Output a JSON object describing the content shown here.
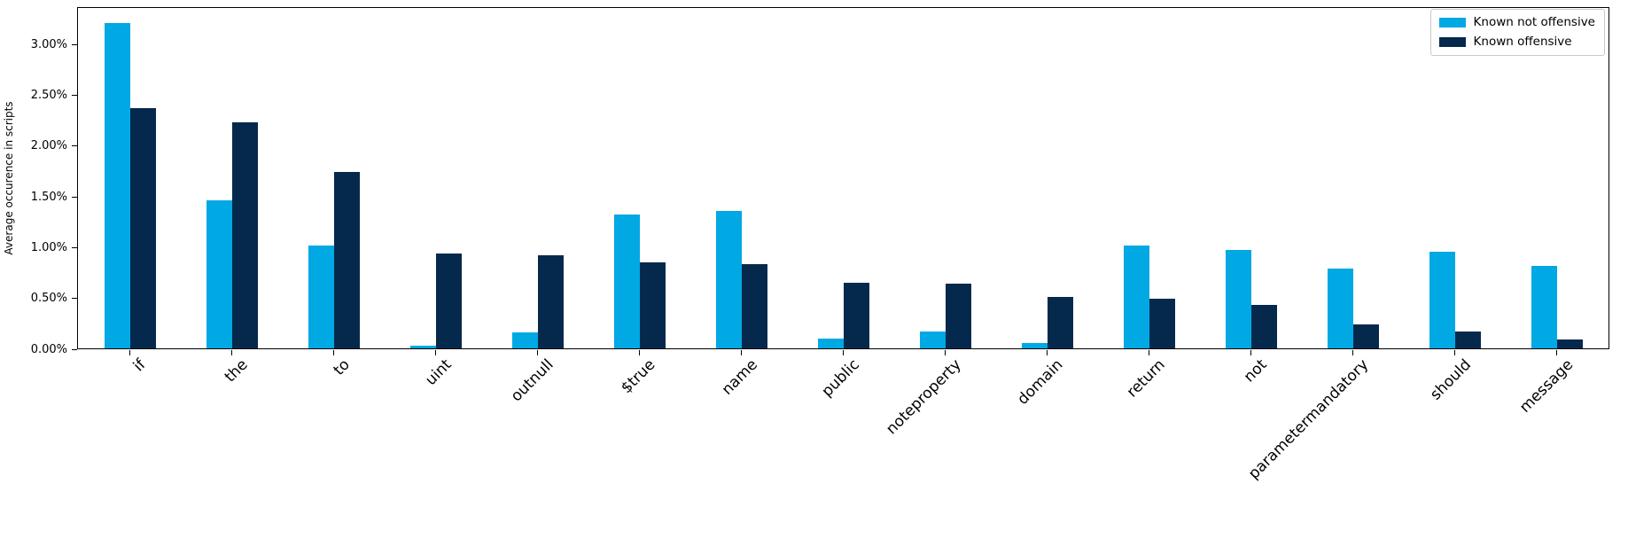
{
  "chart_data": {
    "type": "bar",
    "categories": [
      "if",
      "the",
      "to",
      "uint",
      "outnull",
      "$true",
      "name",
      "public",
      "noteproperty",
      "domain",
      "return",
      "not",
      "parametermandatory",
      "should",
      "message"
    ],
    "series": [
      {
        "name": "Known not offensive",
        "color": "#00a8e4",
        "values": [
          3.2,
          1.46,
          1.01,
          0.03,
          0.16,
          1.32,
          1.35,
          0.1,
          0.17,
          0.05,
          1.01,
          0.97,
          0.79,
          0.95,
          0.81
        ]
      },
      {
        "name": "Known offensive",
        "color": "#05294d",
        "values": [
          2.37,
          2.23,
          1.74,
          0.93,
          0.92,
          0.85,
          0.83,
          0.65,
          0.64,
          0.51,
          0.49,
          0.43,
          0.24,
          0.17,
          0.09
        ]
      }
    ],
    "title": "",
    "xlabel": "",
    "ylabel": "Average occurence in scripts",
    "yticks": [
      {
        "value": 0.0,
        "label": "0.00%"
      },
      {
        "value": 0.5,
        "label": "0.50%"
      },
      {
        "value": 1.0,
        "label": "1.00%"
      },
      {
        "value": 1.5,
        "label": "1.50%"
      },
      {
        "value": 2.0,
        "label": "2.00%"
      },
      {
        "value": 2.5,
        "label": "2.50%"
      },
      {
        "value": 3.0,
        "label": "3.00%"
      }
    ],
    "ylim": [
      0,
      3.37
    ],
    "grid": false,
    "legend_position": "upper right",
    "axis_color": "#000000"
  }
}
